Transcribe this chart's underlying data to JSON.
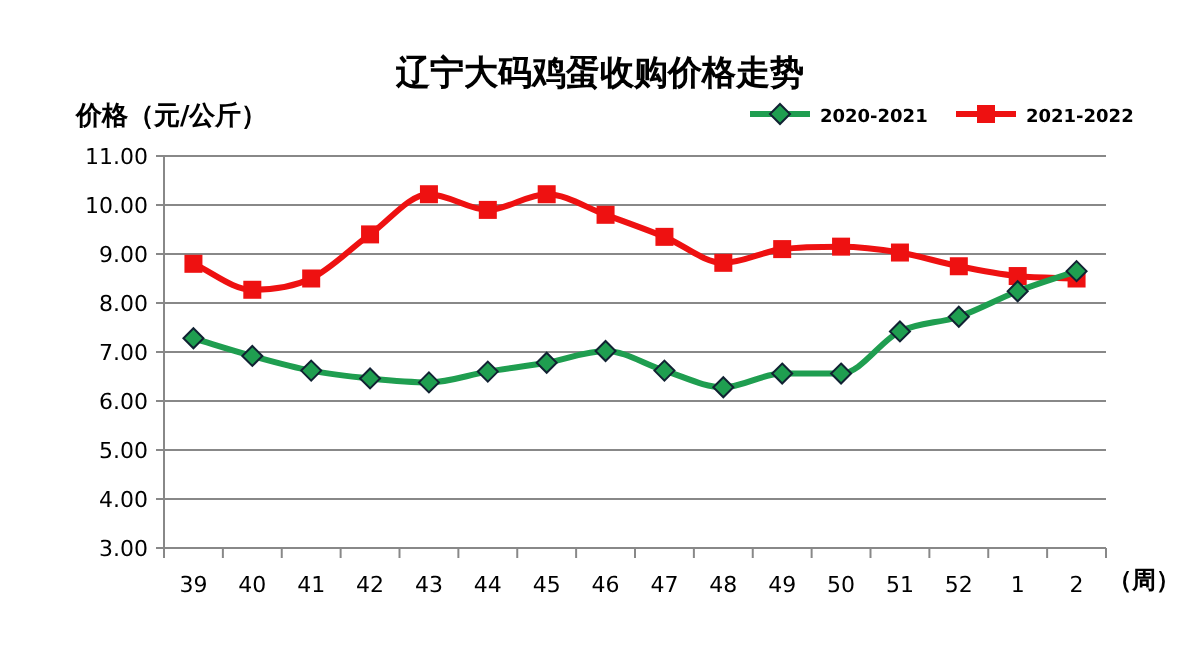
{
  "chart_data": {
    "type": "line",
    "title": "辽宁大码鸡蛋收购价格走势",
    "ylabel": "价格（元/公斤）",
    "xlabel": "（周）",
    "categories": [
      "39",
      "40",
      "41",
      "42",
      "43",
      "44",
      "45",
      "46",
      "47",
      "48",
      "49",
      "50",
      "51",
      "52",
      "1",
      "2"
    ],
    "series": [
      {
        "name": "2020-2021",
        "color": "#1f9e50",
        "marker": "diamond",
        "values": [
          7.28,
          6.92,
          6.62,
          6.46,
          6.38,
          6.6,
          6.78,
          7.02,
          6.62,
          6.28,
          6.56,
          6.56,
          7.42,
          7.72,
          8.24,
          8.65
        ]
      },
      {
        "name": "2021-2022",
        "color": "#ee1111",
        "marker": "square",
        "values": [
          8.8,
          8.27,
          8.5,
          9.4,
          10.22,
          9.9,
          10.22,
          9.8,
          9.35,
          8.82,
          9.1,
          9.15,
          9.03,
          8.75,
          8.55,
          8.5
        ]
      }
    ],
    "ylim": [
      3,
      11
    ],
    "yticks": [
      {
        "value": 3,
        "label": "3.00"
      },
      {
        "value": 4,
        "label": "4.00"
      },
      {
        "value": 5,
        "label": "5.00"
      },
      {
        "value": 6,
        "label": "6.00"
      },
      {
        "value": 7,
        "label": "7.00"
      },
      {
        "value": 8,
        "label": "8.00"
      },
      {
        "value": 9,
        "label": "9.00"
      },
      {
        "value": 10,
        "label": "10.00"
      },
      {
        "value": 11,
        "label": "11.00"
      }
    ],
    "grid": "y",
    "legend": "top right"
  }
}
